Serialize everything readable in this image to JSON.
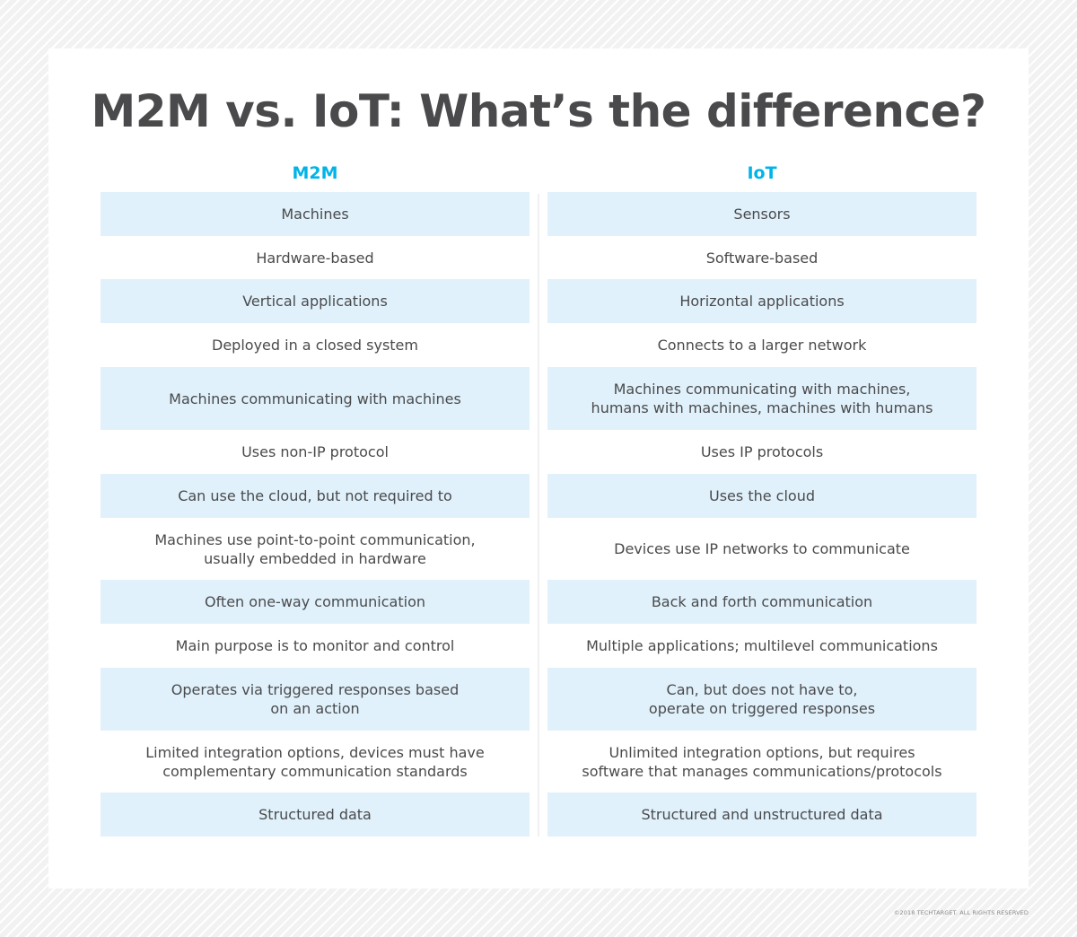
{
  "title": "M2M vs. IoT: What’s the difference?",
  "columns": {
    "left": "M2M",
    "right": "IoT"
  },
  "colors": {
    "accent": "#00b4e8",
    "row_shade": "#e0f1fb",
    "text": "#4a4a4c"
  },
  "rows": [
    {
      "m2m": "Machines",
      "iot": "Sensors"
    },
    {
      "m2m": "Hardware-based",
      "iot": "Software-based"
    },
    {
      "m2m": "Vertical applications",
      "iot": "Horizontal applications"
    },
    {
      "m2m": "Deployed in a closed system",
      "iot": "Connects to a larger network"
    },
    {
      "m2m": "Machines communicating with machines",
      "iot": "Machines communicating with machines,\nhumans with machines, machines with humans"
    },
    {
      "m2m": "Uses non-IP protocol",
      "iot": "Uses IP protocols"
    },
    {
      "m2m": "Can use the cloud, but not required to",
      "iot": "Uses the cloud"
    },
    {
      "m2m": "Machines use point-to-point communication,\nusually embedded in hardware",
      "iot": "Devices use IP networks to communicate"
    },
    {
      "m2m": "Often one-way communication",
      "iot": "Back and forth communication"
    },
    {
      "m2m": "Main purpose is to monitor and control",
      "iot": "Multiple applications; multilevel communications"
    },
    {
      "m2m": "Operates via triggered responses based\non an action",
      "iot": "Can, but does not have to,\noperate on triggered responses"
    },
    {
      "m2m": "Limited integration options, devices must have\ncomplementary communication standards",
      "iot": "Unlimited integration options, but requires\nsoftware that manages communications/protocols"
    },
    {
      "m2m": "Structured data",
      "iot": "Structured and unstructured data"
    }
  ],
  "footer": {
    "copyright": "©2018 TECHTARGET. ALL RIGHTS RESERVED"
  }
}
